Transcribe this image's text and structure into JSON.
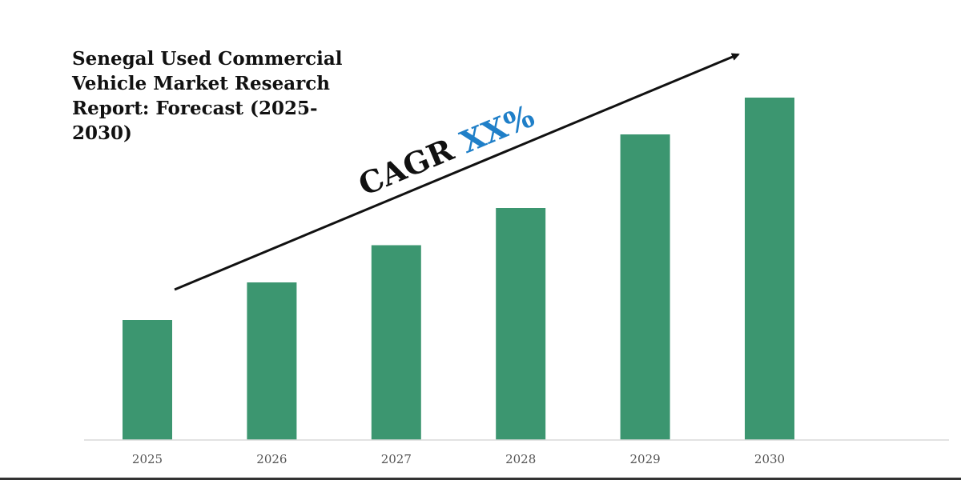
{
  "chart_data": {
    "type": "bar",
    "title": "Senegal Used Commercial\nVehicle Market Research\nReport: Forecast (2025-2030)",
    "categories": [
      "2025",
      "2026",
      "2027",
      "2028",
      "2029",
      "2030"
    ],
    "values": [
      30,
      39.4,
      48.7,
      58,
      76.4,
      85.6
    ],
    "xlabel": "",
    "ylabel": "",
    "ylim": [
      0,
      100
    ],
    "grid": false,
    "legend": "none",
    "bar_color": "#3c9670",
    "annotation": {
      "label": "CAGR",
      "value": "XX%",
      "label_color": "#111111",
      "value_color": "#1f7fc8",
      "arrow": "trend-up"
    }
  }
}
